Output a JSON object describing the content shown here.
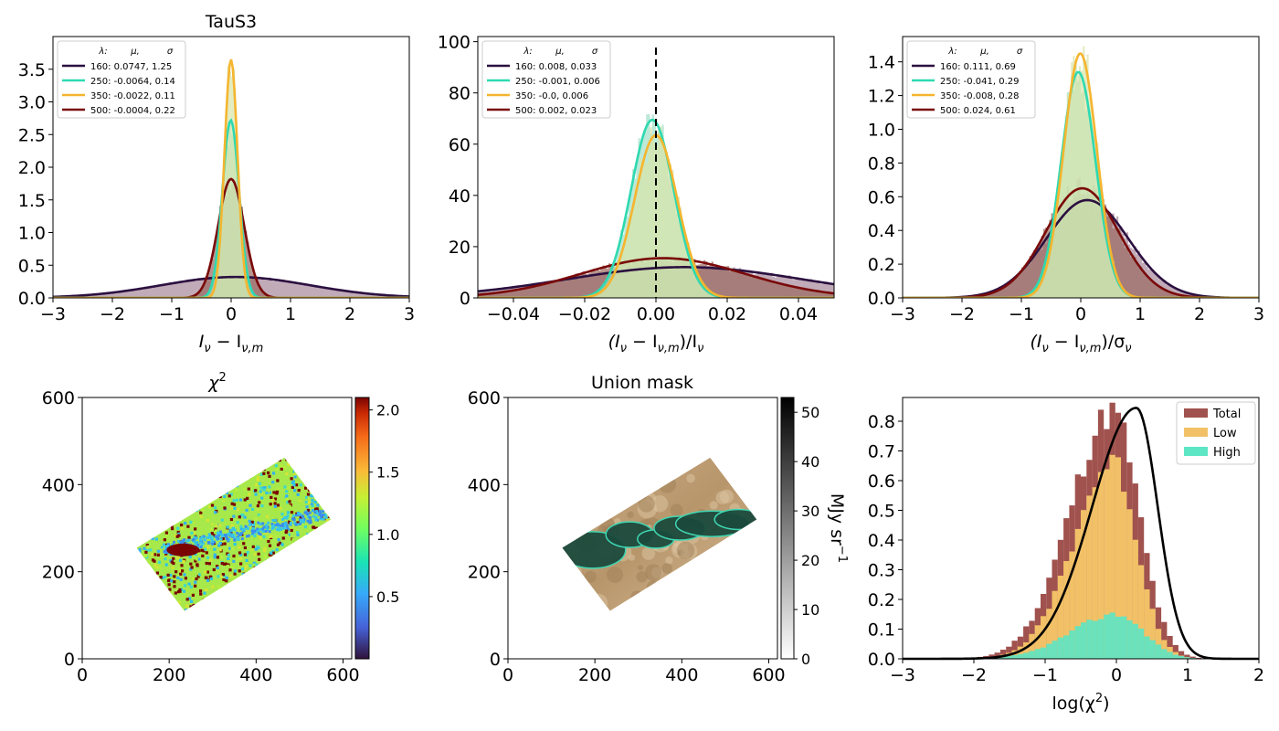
{
  "figure": {
    "panels": [
      {
        "title": "TauS3",
        "xlabel_main": "I",
        "xlabel_sub1": "ν",
        "xlabel_mid": " − I",
        "xlabel_sub2": "ν,m",
        "xlabel_tail": "",
        "legend": {
          "header": [
            "λ:",
            "μ,",
            "σ"
          ],
          "entries": [
            "160: 0.0747,  1.25",
            "250: -0.0064,  0.14",
            "350: -0.0022,  0.11",
            "500: -0.0004,  0.22"
          ]
        }
      },
      {
        "title": "",
        "xlabel_main": "(I",
        "xlabel_sub1": "ν",
        "xlabel_mid": " − I",
        "xlabel_sub2": "ν,m",
        "xlabel_tail": ")/I",
        "xlabel_sub3": "ν",
        "legend": {
          "header": [
            "λ:",
            "μ,",
            "σ"
          ],
          "entries": [
            "160: 0.008,  0.033",
            "250: -0.001,  0.006",
            "350: -0.0,  0.006",
            "500: 0.002,  0.023"
          ]
        }
      },
      {
        "title": "",
        "xlabel_main": "(I",
        "xlabel_sub1": "ν",
        "xlabel_mid": " − I",
        "xlabel_sub2": "ν,m",
        "xlabel_tail": ")/σ",
        "xlabel_sub3": "ν",
        "legend": {
          "header": [
            "λ:",
            "μ,",
            "σ"
          ],
          "entries": [
            "160: 0.111,  0.69",
            "250: -0.041,  0.29",
            "350: -0.008,  0.28",
            "500: 0.024,  0.61"
          ]
        }
      },
      {
        "title": "χ",
        "title_sup": "2",
        "colorbar_label": ""
      },
      {
        "title": "Union mask",
        "colorbar_label": "MJy sr",
        "colorbar_sup": "−1"
      },
      {
        "title": "",
        "xlabel": "log(χ",
        "xlabel_sup": "2",
        "xlabel_tail": ")",
        "legend": [
          "Total",
          "Low",
          "High"
        ]
      }
    ]
  },
  "chart_data": [
    {
      "type": "area",
      "title": "TauS3",
      "xlim": [
        -3,
        3
      ],
      "ylim": [
        0,
        4.0
      ],
      "xticks": [
        -3,
        -2,
        -1,
        0,
        1,
        2,
        3
      ],
      "yticks": [
        0.0,
        0.5,
        1.0,
        1.5,
        2.0,
        2.5,
        3.0,
        3.5
      ],
      "series": [
        {
          "name": "160",
          "mu": 0.0747,
          "sigma": 1.25,
          "peak": 0.32,
          "color": "#2b1040",
          "fill": "#a7889a"
        },
        {
          "name": "250",
          "mu": -0.0064,
          "sigma": 0.14,
          "peak": 2.72,
          "color": "#2ed9b0",
          "fill": "#9fe0c8"
        },
        {
          "name": "350",
          "mu": -0.0022,
          "sigma": 0.11,
          "peak": 3.65,
          "color": "#f5b52f",
          "fill": "#d8e4a8"
        },
        {
          "name": "500",
          "mu": -0.0004,
          "sigma": 0.22,
          "peak": 1.82,
          "color": "#7a0a0a",
          "fill": "#9a6a60"
        }
      ]
    },
    {
      "type": "area",
      "xlim": [
        -0.05,
        0.05
      ],
      "ylim": [
        0,
        102
      ],
      "xticks": [
        -0.04,
        -0.02,
        0.0,
        0.02,
        0.04
      ],
      "yticks": [
        0,
        20,
        40,
        60,
        80,
        100
      ],
      "vline": 0.0,
      "series": [
        {
          "name": "160",
          "mu": 0.008,
          "sigma": 0.033,
          "peak": 12.0,
          "color": "#2b1040",
          "fill": "#a7889a"
        },
        {
          "name": "250",
          "mu": -0.001,
          "sigma": 0.006,
          "peak": 69.5,
          "color": "#2ed9b0",
          "fill": "#9fe0c8"
        },
        {
          "name": "350",
          "mu": 0.0,
          "sigma": 0.006,
          "peak": 63.5,
          "color": "#f5b52f",
          "fill": "#d8e4a8"
        },
        {
          "name": "500",
          "mu": 0.002,
          "sigma": 0.023,
          "peak": 15.5,
          "color": "#7a0a0a",
          "fill": "#9a6a60"
        }
      ]
    },
    {
      "type": "area",
      "xlim": [
        -3,
        3
      ],
      "ylim": [
        0,
        1.55
      ],
      "xticks": [
        -3,
        -2,
        -1,
        0,
        1,
        2,
        3
      ],
      "yticks": [
        0.0,
        0.2,
        0.4,
        0.6,
        0.8,
        1.0,
        1.2,
        1.4
      ],
      "series": [
        {
          "name": "160",
          "mu": 0.111,
          "sigma": 0.69,
          "peak": 0.58,
          "color": "#2b1040",
          "fill": "#a7889a"
        },
        {
          "name": "250",
          "mu": -0.041,
          "sigma": 0.29,
          "peak": 1.34,
          "color": "#2ed9b0",
          "fill": "#9fe0c8"
        },
        {
          "name": "350",
          "mu": -0.008,
          "sigma": 0.28,
          "peak": 1.45,
          "color": "#f5b52f",
          "fill": "#d8e4a8"
        },
        {
          "name": "500",
          "mu": 0.024,
          "sigma": 0.61,
          "peak": 0.65,
          "color": "#7a0a0a",
          "fill": "#9a6a60"
        }
      ]
    },
    {
      "type": "heatmap",
      "title": "χ2",
      "xlim": [
        0,
        620
      ],
      "ylim": [
        0,
        600
      ],
      "xticks": [
        0,
        200,
        400,
        600
      ],
      "yticks": [
        0,
        200,
        400,
        600
      ],
      "colorbar": {
        "ticks": [
          0.5,
          1.0,
          1.5,
          2.0
        ],
        "range": [
          0.0,
          2.1
        ]
      }
    },
    {
      "type": "heatmap",
      "title": "Union mask",
      "xlim": [
        0,
        620
      ],
      "ylim": [
        0,
        600
      ],
      "xticks": [
        0,
        200,
        400,
        600
      ],
      "yticks": [
        0,
        200,
        400,
        600
      ],
      "colorbar": {
        "label": "MJy sr−1",
        "ticks": [
          0,
          10,
          20,
          30,
          40,
          50
        ],
        "range": [
          0,
          53
        ]
      }
    },
    {
      "type": "bar",
      "xlabel": "log(χ2)",
      "xlim": [
        -3,
        2
      ],
      "ylim": [
        0,
        0.88
      ],
      "xticks": [
        -3,
        -2,
        -1,
        0,
        1,
        2
      ],
      "yticks": [
        0.0,
        0.1,
        0.2,
        0.3,
        0.4,
        0.5,
        0.6,
        0.7,
        0.8
      ],
      "legend_position": "top-right",
      "series": [
        {
          "name": "Total",
          "mu": -0.05,
          "sigma": 0.52,
          "peak": 0.83,
          "color": "#a0524e"
        },
        {
          "name": "Low",
          "mu": -0.05,
          "sigma": 0.48,
          "peak": 0.66,
          "color": "#f2c167"
        },
        {
          "name": "High",
          "mu": 0.0,
          "sigma": 0.55,
          "peak": 0.15,
          "color": "#5ce6c4"
        }
      ],
      "curve": {
        "peak_x": 0.28,
        "peak_y": 0.845,
        "color": "#000000"
      }
    }
  ]
}
